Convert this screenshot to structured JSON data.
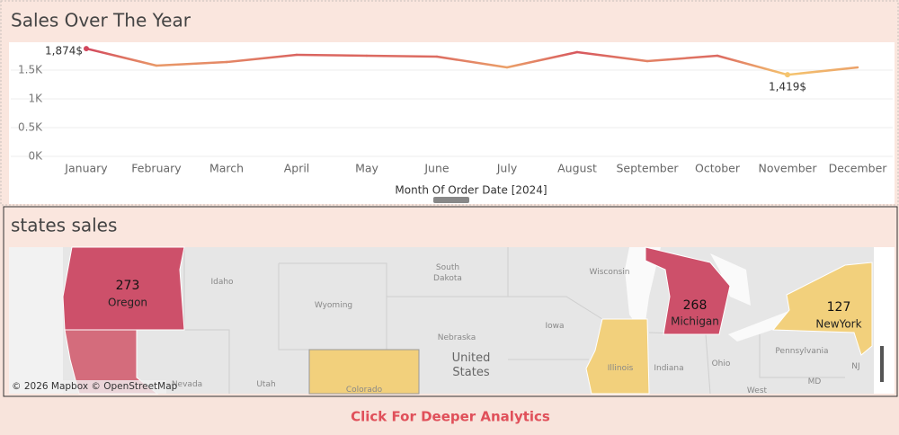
{
  "chart_data": {
    "type": "line",
    "title": "Sales Over The Year",
    "categories": [
      "January",
      "February",
      "March",
      "April",
      "May",
      "June",
      "July",
      "August",
      "September",
      "October",
      "November",
      "December"
    ],
    "values": [
      1874,
      1578,
      1640,
      1766,
      1750,
      1734,
      1547,
      1812,
      1656,
      1750,
      1419,
      1547
    ],
    "value_labels": [
      "1,874$",
      null,
      null,
      null,
      null,
      null,
      null,
      null,
      null,
      null,
      "1,419$",
      null
    ],
    "color_range": [
      "#f5c56e",
      "#d2465c"
    ],
    "x_label": "Month Of Order Date [2024]",
    "ylim": [
      0,
      2000
    ],
    "yticks": [
      {
        "value": 0,
        "label": "0K"
      },
      {
        "value": 500,
        "label": "0.5K"
      },
      {
        "value": 1000,
        "label": "1K"
      },
      {
        "value": 1500,
        "label": "1.5K"
      }
    ],
    "grid": true
  },
  "map": {
    "title": "states sales",
    "regions": [
      {
        "name": "Oregon",
        "value": 273
      },
      {
        "name": "Michigan",
        "value": 268
      },
      {
        "name": "NewYork",
        "value": 127
      }
    ],
    "place_labels": [
      "Idaho",
      "Wyoming",
      "South\nDakota",
      "Wisconsin",
      "Iowa",
      "Nebraska",
      "United\nStates",
      "Illinois",
      "Indiana",
      "Ohio",
      "Pennsylvania",
      "NJ",
      "MD",
      "West",
      "Nevada",
      "Utah",
      "Colorado"
    ],
    "attribution": "© 2026 Mapbox © OpenStreetMap"
  },
  "button": {
    "label": "Click For Deeper Analytics"
  }
}
